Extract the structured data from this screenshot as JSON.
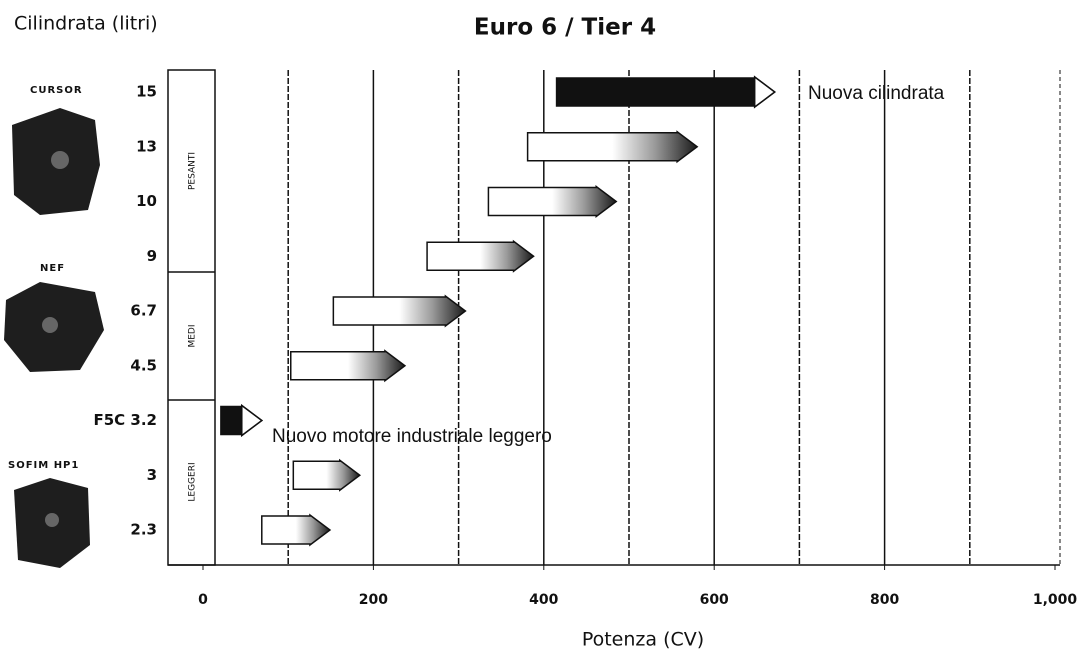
{
  "chart_data": {
    "type": "range-bar",
    "title": "Euro 6 / Tier 4",
    "y_axis_label": "Cilindrata (litri)",
    "x_axis_label": "Potenza (CV)",
    "categories": [
      "15",
      "13",
      "10",
      "9",
      "6.7",
      "4.5",
      "F5C 3.2",
      "3",
      "2.3"
    ],
    "starts": [
      415,
      381,
      335,
      263,
      153,
      103,
      21,
      106,
      69
    ],
    "ends": [
      671,
      580,
      485,
      388,
      308,
      237,
      69,
      184,
      149
    ],
    "colors": [
      "#111111",
      "#ffffff",
      "#ffffff",
      "#ffffff",
      "#ffffff",
      "#ffffff",
      "#111111",
      "#ffffff",
      "#ffffff"
    ],
    "xlim": [
      0,
      1000
    ],
    "xticks": [
      0,
      200,
      400,
      600,
      800,
      {
        "value": 1000,
        "label": "1,000"
      }
    ],
    "grid_lines": [
      100,
      200,
      300,
      400,
      500,
      600,
      700,
      800,
      900
    ],
    "groups": [
      "PESANTI",
      "MEDI",
      "LEGGERI"
    ],
    "engines": [
      "CURSOR",
      "NEF",
      "SOFIM HP1"
    ],
    "annotations": [
      "Nuova cilindrata",
      "Nuovo motore industriale leggero"
    ]
  }
}
